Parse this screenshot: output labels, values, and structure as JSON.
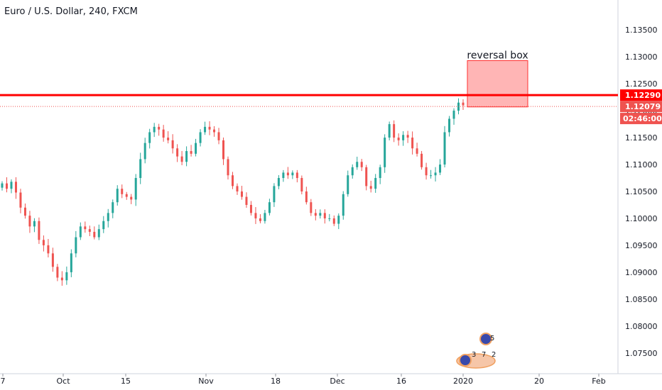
{
  "chart_data": {
    "type": "candlestick",
    "title": "Euro / U.S. Dollar, 240, FXCM",
    "x_ticks": [
      "7",
      "Oct",
      "15",
      "Nov",
      "18",
      "Dec",
      "16",
      "2020",
      "20",
      "Feb"
    ],
    "y_ticks": [
      "1.13500",
      "1.13000",
      "1.12500",
      "1.12000",
      "1.11500",
      "1.11000",
      "1.10500",
      "1.10000",
      "1.09500",
      "1.09000",
      "1.08500",
      "1.08000",
      "1.07500"
    ],
    "ylim": [
      1.073,
      1.137
    ],
    "grid": false,
    "price_levels": [
      {
        "label": "1.12290",
        "value": 1.1229,
        "style": "solid",
        "color": "#ff0000"
      },
      {
        "label": "1.12079",
        "value": 1.12079,
        "style": "dotted",
        "color": "#ef5350"
      }
    ],
    "countdown": "02:46:00",
    "annotation": {
      "text": "reversal box",
      "y_top": 1.1293,
      "y_bottom": 1.1207,
      "fill": "#ffa8a8",
      "stroke": "#ff3030"
    },
    "event_markers": [
      "5",
      "3",
      "7",
      "2"
    ],
    "series": [
      {
        "name": "price",
        "values": [
          1.1065,
          1.1055,
          1.1068,
          1.1048,
          1.102,
          1.1005,
          1.0985,
          1.0995,
          1.096,
          1.095,
          1.0935,
          1.091,
          1.089,
          1.0885,
          1.09,
          1.0935,
          1.0965,
          1.0985,
          1.098,
          1.0975,
          1.0965,
          1.098,
          1.0995,
          1.101,
          1.103,
          1.1055,
          1.1045,
          1.104,
          1.1035,
          1.1075,
          1.111,
          1.114,
          1.116,
          1.117,
          1.1165,
          1.115,
          1.1145,
          1.113,
          1.1115,
          1.1105,
          1.1125,
          1.112,
          1.114,
          1.116,
          1.117,
          1.1165,
          1.116,
          1.1145,
          1.111,
          1.108,
          1.106,
          1.105,
          1.104,
          1.1025,
          1.101,
          1.1,
          1.0995,
          1.101,
          1.103,
          1.106,
          1.1075,
          1.1085,
          1.108,
          1.1085,
          1.1075,
          1.105,
          1.103,
          1.101,
          1.1005,
          1.101,
          1.1,
          1.1,
          1.099,
          1.1005,
          1.1045,
          1.108,
          1.1095,
          1.1105,
          1.1095,
          1.106,
          1.1055,
          1.1075,
          1.1095,
          1.115,
          1.1175,
          1.115,
          1.1145,
          1.1155,
          1.115,
          1.113,
          1.112,
          1.1095,
          1.108,
          1.108,
          1.1085,
          1.11,
          1.116,
          1.1185,
          1.12,
          1.1215,
          1.121
        ]
      }
    ]
  }
}
